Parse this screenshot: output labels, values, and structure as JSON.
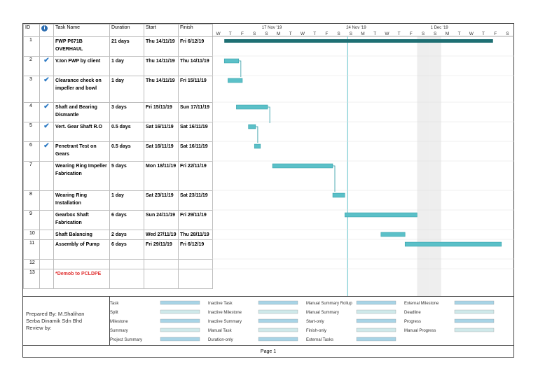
{
  "columns": {
    "id": "ID",
    "indicator": "i",
    "name": "Task Name",
    "duration": "Duration",
    "start": "Start",
    "finish": "Finish"
  },
  "tasks": [
    {
      "id": "1",
      "check": "",
      "name": "FWP P671B OVERHAUL",
      "duration": "21 days",
      "start": "Thu 14/11/19",
      "finish": "Fri 6/12/19",
      "red": false
    },
    {
      "id": "2",
      "check": "✔",
      "name": "V.Ion FWP by client",
      "duration": "1 day",
      "start": "Thu 14/11/19",
      "finish": "Thu 14/11/19",
      "red": false
    },
    {
      "id": "3",
      "check": "✔",
      "name": "Clearance check on impeller and bowl",
      "duration": "1 day",
      "start": "Thu 14/11/19",
      "finish": "Fri 15/11/19",
      "red": false
    },
    {
      "id": "4",
      "check": "✔",
      "name": "Shaft and Bearing Dismantle",
      "duration": "3 days",
      "start": "Fri 15/11/19",
      "finish": "Sun 17/11/19",
      "red": false
    },
    {
      "id": "5",
      "check": "✔",
      "name": "Vert. Gear Shaft R.O",
      "duration": "0.5 days",
      "start": "Sat 16/11/19",
      "finish": "Sat 16/11/19",
      "red": false
    },
    {
      "id": "6",
      "check": "✔",
      "name": "Penetrant Test on Gears",
      "duration": "0.5 days",
      "start": "Sat 16/11/19",
      "finish": "Sat 16/11/19",
      "red": false
    },
    {
      "id": "7",
      "check": "",
      "name": "Wearing Ring Impeller Fabrication",
      "duration": "5 days",
      "start": "Mon 18/11/19",
      "finish": "Fri 22/11/19",
      "red": false
    },
    {
      "id": "8",
      "check": "",
      "name": "Wearing Ring Installation",
      "duration": "1 day",
      "start": "Sat 23/11/19",
      "finish": "Sat 23/11/19",
      "red": false
    },
    {
      "id": "9",
      "check": "",
      "name": "Gearbox Shaft Fabrication",
      "duration": "6 days",
      "start": "Sun 24/11/19",
      "finish": "Fri 29/11/19",
      "red": false
    },
    {
      "id": "10",
      "check": "",
      "name": "Shaft Balancing",
      "duration": "2 days",
      "start": "Wed 27/11/19",
      "finish": "Thu 28/11/19",
      "red": false
    },
    {
      "id": "11",
      "check": "",
      "name": "Assembly of Pump",
      "duration": "6 days",
      "start": "Fri 29/11/19",
      "finish": "Fri 6/12/19",
      "red": false
    },
    {
      "id": "12",
      "check": "",
      "name": "",
      "duration": "",
      "start": "",
      "finish": "",
      "red": false
    },
    {
      "id": "13",
      "check": "",
      "name": "*Demob to PCLDPE",
      "duration": "",
      "start": "",
      "finish": "",
      "red": true
    }
  ],
  "timescale": {
    "weeks": [
      "17 Nov '19",
      "24 Nov '19",
      "1 Dec '19"
    ],
    "days": [
      "W",
      "T",
      "F",
      "S",
      "S",
      "M",
      "T",
      "W",
      "T",
      "F",
      "S",
      "S",
      "M",
      "T",
      "W",
      "T",
      "F",
      "S",
      "S",
      "M",
      "T",
      "W",
      "T",
      "F",
      "S"
    ]
  },
  "legend": {
    "prepared_by": "Prepared By: M.Shalihan",
    "company": "Serba Dinamik Sdn Bhd",
    "review": "Review by:",
    "items": [
      "Task",
      "Split",
      "Milestone",
      "Summary",
      "Project Summary",
      "Inactive Task",
      "Inactive Milestone",
      "Inactive Summary",
      "Manual Task",
      "Duration-only",
      "Manual Summary Rollup",
      "Manual Summary",
      "Start-only",
      "Finish-only",
      "External Tasks",
      "External Milestone",
      "Deadline",
      "Progress",
      "Manual Progress"
    ]
  },
  "footer": {
    "page": "Page 1"
  },
  "colors": {
    "bar": "#5bc0c8",
    "summary": "#1e6f73",
    "grid": "#bdbdbd",
    "weekend": "#eeeeee"
  }
}
